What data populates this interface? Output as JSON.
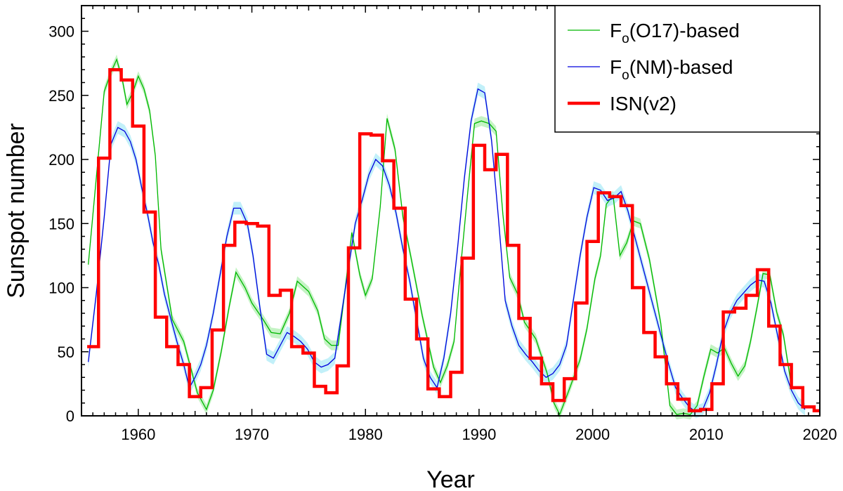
{
  "chart_data": {
    "type": "line",
    "xlabel": "Year",
    "ylabel": "Sunspot number",
    "xlim": [
      1955,
      2020
    ],
    "ylim": [
      0,
      320
    ],
    "x_ticks": [
      1960,
      1970,
      1980,
      1990,
      2000,
      2010,
      2020
    ],
    "y_ticks": [
      0,
      50,
      100,
      150,
      200,
      250,
      300
    ],
    "legend_position": "top-right",
    "grid": false,
    "colors": {
      "fo17": "#00b800",
      "fo17_band": "#b5f0b5",
      "fonm": "#0000dd",
      "fonm_band": "#b3ecf7",
      "isn": "#ff0000"
    },
    "series": [
      {
        "key": "fo17",
        "name": "Fo(O17)-based",
        "legend_main_1": "F",
        "legend_sub": "o",
        "legend_main_2": "(O17)-based",
        "step": false,
        "x": [
          1955.6,
          1956.4,
          1957.0,
          1957.6,
          1958.1,
          1958.6,
          1959.0,
          1959.5,
          1960.0,
          1960.5,
          1961.0,
          1961.5,
          1962.0,
          1963.0,
          1964.0,
          1964.6,
          1965.2,
          1966.0,
          1966.6,
          1967.3,
          1968.0,
          1968.6,
          1969.4,
          1970.0,
          1971.0,
          1971.7,
          1972.5,
          1973.3,
          1974.0,
          1975.0,
          1975.8,
          1976.4,
          1977.0,
          1977.6,
          1978.2,
          1978.8,
          1979.5,
          1980.0,
          1980.6,
          1981.3,
          1981.9,
          1982.6,
          1983.3,
          1984.0,
          1985.0,
          1986.0,
          1986.6,
          1987.2,
          1987.8,
          1988.4,
          1989.0,
          1989.6,
          1990.2,
          1990.9,
          1991.5,
          1992.1,
          1992.7,
          1993.4,
          1994.0,
          1995.0,
          1996.0,
          1996.6,
          1997.1,
          1998.0,
          1998.9,
          1999.5,
          2000.2,
          2000.7,
          2001.2,
          2001.8,
          2002.4,
          2003.0,
          2003.6,
          2004.2,
          2005.0,
          2006.0,
          2006.8,
          2007.4,
          2008.0,
          2008.6,
          2009.2,
          2009.8,
          2010.4,
          2011.0,
          2011.6,
          2012.2,
          2012.8,
          2013.4,
          2013.9,
          2014.5,
          2015.0,
          2015.6,
          2016.2,
          2016.8,
          2017.4
        ],
        "y": [
          118,
          195,
          253,
          268,
          278,
          262,
          243,
          252,
          265,
          255,
          238,
          203,
          130,
          75,
          58,
          38,
          18,
          5,
          20,
          50,
          85,
          112,
          100,
          88,
          75,
          65,
          64,
          80,
          105,
          97,
          82,
          60,
          55,
          55,
          98,
          143,
          110,
          94,
          107,
          163,
          232,
          208,
          155,
          124,
          78,
          38,
          26,
          39,
          58,
          118,
          174,
          228,
          230,
          228,
          222,
          157,
          108,
          95,
          73,
          60,
          33,
          10,
          1,
          22,
          44,
          68,
          107,
          125,
          165,
          172,
          125,
          135,
          152,
          150,
          122,
          72,
          8,
          1,
          2,
          1,
          8,
          31,
          52,
          49,
          53,
          41,
          31,
          39,
          58,
          86,
          111,
          110,
          81,
          63,
          29
        ]
      },
      {
        "key": "fonm",
        "name": "Fo(NM)-based",
        "legend_main_1": "F",
        "legend_sub": "o",
        "legend_main_2": "(NM)-based",
        "step": false,
        "x": [
          1955.6,
          1956.3,
          1957.0,
          1957.6,
          1958.2,
          1958.8,
          1959.3,
          1959.8,
          1960.3,
          1960.8,
          1961.3,
          1961.8,
          1962.3,
          1962.8,
          1963.4,
          1964.0,
          1964.5,
          1965.0,
          1965.5,
          1966.0,
          1966.6,
          1967.2,
          1967.8,
          1968.4,
          1969.0,
          1969.6,
          1970.1,
          1970.7,
          1971.3,
          1971.9,
          1972.5,
          1973.1,
          1973.7,
          1974.3,
          1974.9,
          1975.5,
          1976.1,
          1976.7,
          1977.3,
          1977.9,
          1978.5,
          1979.1,
          1979.7,
          1980.3,
          1980.9,
          1981.5,
          1982.1,
          1982.7,
          1983.3,
          1983.9,
          1984.5,
          1985.1,
          1985.7,
          1986.3,
          1986.9,
          1987.5,
          1988.1,
          1988.7,
          1989.3,
          1989.9,
          1990.5,
          1991.1,
          1991.7,
          1992.3,
          1992.9,
          1993.5,
          1994.1,
          1994.7,
          1995.3,
          1995.9,
          1996.5,
          1997.1,
          1997.7,
          1998.3,
          1998.9,
          1999.5,
          2000.1,
          2000.7,
          2001.3,
          2001.9,
          2002.5,
          2003.1,
          2003.7,
          2004.3,
          2004.9,
          2005.5,
          2006.1,
          2006.7,
          2007.3,
          2007.9,
          2008.5,
          2009.1,
          2009.7,
          2010.3,
          2010.9,
          2011.5,
          2012.1,
          2012.7,
          2013.3,
          2013.9,
          2014.5,
          2015.1,
          2015.7,
          2016.3,
          2016.9,
          2017.5,
          2018.1,
          2018.7
        ],
        "y": [
          42,
          95,
          155,
          212,
          225,
          222,
          214,
          200,
          178,
          158,
          135,
          118,
          95,
          78,
          58,
          40,
          22,
          30,
          40,
          55,
          80,
          110,
          140,
          162,
          162,
          150,
          125,
          85,
          48,
          45,
          55,
          65,
          62,
          58,
          52,
          42,
          38,
          40,
          45,
          80,
          115,
          150,
          168,
          188,
          200,
          195,
          180,
          158,
          130,
          105,
          75,
          45,
          30,
          22,
          45,
          80,
          130,
          185,
          230,
          255,
          252,
          215,
          155,
          90,
          70,
          55,
          48,
          42,
          35,
          30,
          33,
          40,
          55,
          90,
          125,
          155,
          178,
          176,
          168,
          170,
          175,
          160,
          140,
          120,
          100,
          80,
          60,
          40,
          22,
          14,
          7,
          3,
          5,
          18,
          40,
          65,
          80,
          90,
          96,
          102,
          106,
          105,
          88,
          62,
          35,
          20,
          10,
          5
        ]
      },
      {
        "key": "isn",
        "name": "ISN(v2)",
        "legend_main_1": "ISN(v2)",
        "legend_sub": "",
        "legend_main_2": "",
        "step": true,
        "x": [
          1955.5,
          1956.5,
          1957.5,
          1958.5,
          1959.5,
          1960.5,
          1961.5,
          1962.5,
          1963.5,
          1964.5,
          1965.5,
          1966.5,
          1967.5,
          1968.5,
          1969.5,
          1970.5,
          1971.5,
          1972.5,
          1973.5,
          1974.5,
          1975.5,
          1976.5,
          1977.5,
          1978.5,
          1979.5,
          1980.5,
          1981.5,
          1982.5,
          1983.5,
          1984.5,
          1985.5,
          1986.5,
          1987.5,
          1988.5,
          1989.5,
          1990.5,
          1991.5,
          1992.5,
          1993.5,
          1994.5,
          1995.5,
          1996.5,
          1997.5,
          1998.5,
          1999.5,
          2000.5,
          2001.5,
          2002.5,
          2003.5,
          2004.5,
          2005.5,
          2006.5,
          2007.5,
          2008.5,
          2009.5,
          2010.5,
          2011.5,
          2012.5,
          2013.5,
          2014.5,
          2015.5,
          2016.5,
          2017.5,
          2018.5,
          2019.5,
          2020.0
        ],
        "y": [
          54,
          201,
          270,
          262,
          226,
          159,
          77,
          54,
          40,
          15,
          22,
          67,
          133,
          151,
          150,
          148,
          94,
          98,
          54,
          49,
          23,
          18,
          39,
          131,
          220,
          219,
          199,
          162,
          91,
          60,
          21,
          15,
          34,
          123,
          211,
          192,
          204,
          133,
          76,
          45,
          25,
          12,
          29,
          88,
          136,
          174,
          171,
          164,
          100,
          65,
          46,
          25,
          13,
          4,
          5,
          25,
          81,
          84,
          94,
          114,
          70,
          40,
          22,
          7,
          4,
          4
        ]
      }
    ]
  }
}
